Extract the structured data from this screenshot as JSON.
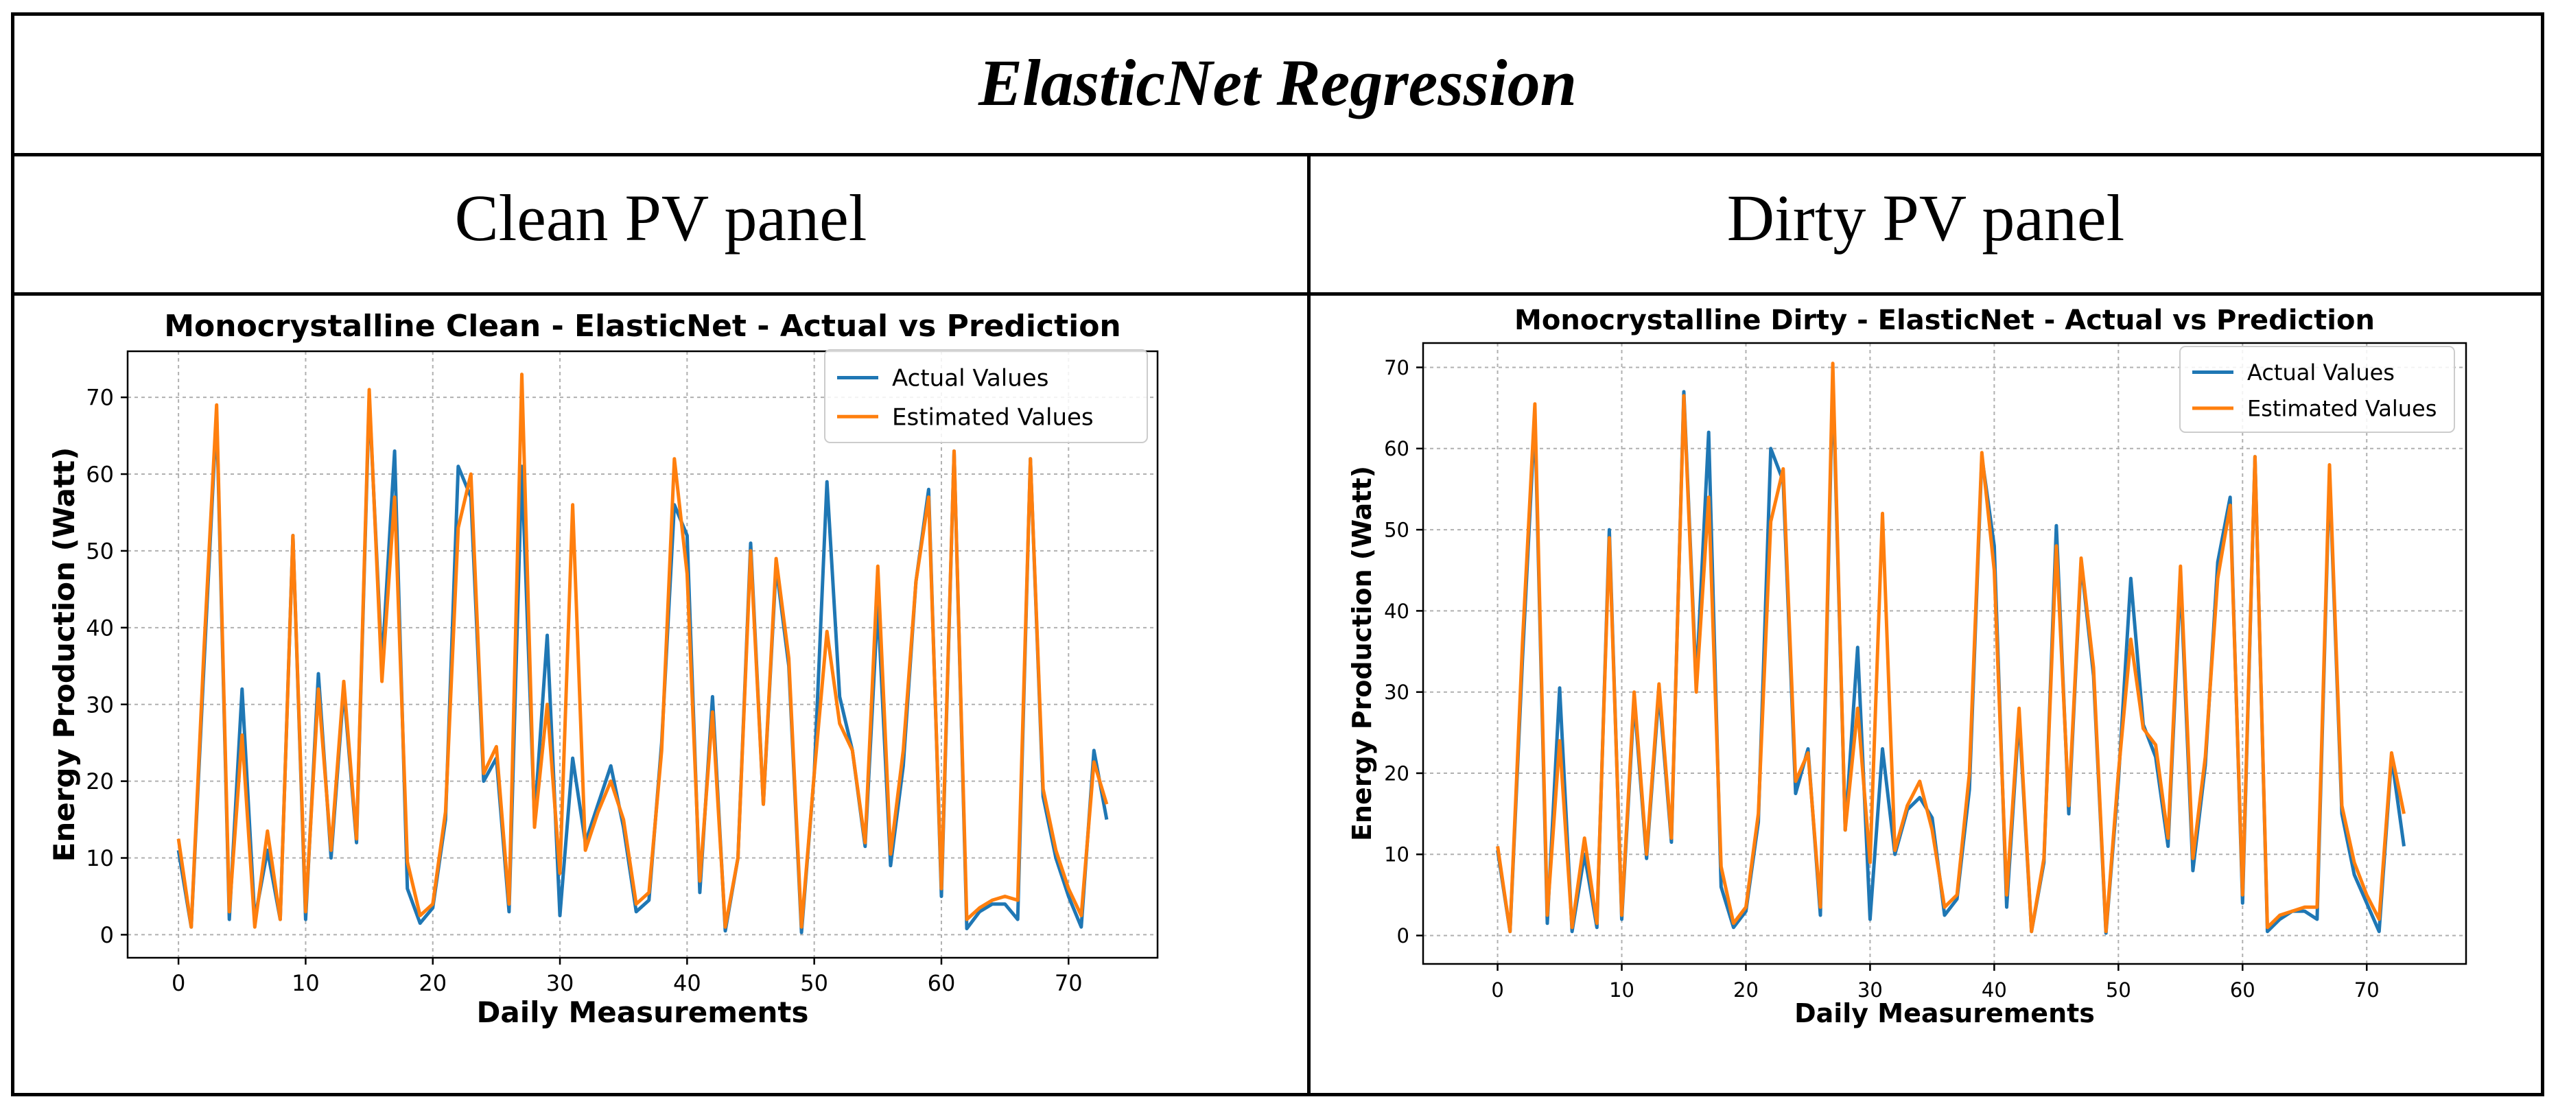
{
  "table": {
    "title": "ElasticNet Regression",
    "left_heading": "Clean PV panel",
    "right_heading": "Dirty PV panel"
  },
  "colors": {
    "actual": "#1f77b4",
    "estimated": "#ff7f0e"
  },
  "chart_data": [
    {
      "type": "line",
      "title": "Monocrystalline Clean  - ElasticNet - Actual vs Prediction",
      "xlabel": "Daily Measurements",
      "ylabel": "Energy Production (Watt)",
      "xlim": [
        -4,
        77
      ],
      "ylim": [
        -3,
        76
      ],
      "xticks": [
        0,
        10,
        20,
        30,
        40,
        50,
        60,
        70
      ],
      "yticks": [
        0,
        10,
        20,
        30,
        40,
        50,
        60,
        70
      ],
      "grid": true,
      "legend_position": "top-right",
      "x": [
        0,
        1,
        2,
        3,
        4,
        5,
        6,
        7,
        8,
        9,
        10,
        11,
        12,
        13,
        14,
        15,
        16,
        17,
        18,
        19,
        20,
        21,
        22,
        23,
        24,
        25,
        26,
        27,
        28,
        29,
        30,
        31,
        32,
        33,
        34,
        35,
        36,
        37,
        38,
        39,
        40,
        41,
        42,
        43,
        44,
        45,
        46,
        47,
        48,
        49,
        50,
        51,
        52,
        53,
        54,
        55,
        56,
        57,
        58,
        59,
        60,
        61,
        62,
        63,
        64,
        65,
        66,
        67,
        68,
        69,
        70,
        71,
        72,
        73
      ],
      "series": [
        {
          "name": "Actual Values",
          "values": [
            11,
            1,
            35,
            68,
            2,
            32,
            2,
            11,
            2,
            52,
            2,
            34,
            10,
            32,
            12,
            70,
            35,
            63,
            6,
            1.5,
            3.5,
            15,
            61,
            57,
            20,
            23,
            3,
            61,
            15,
            39,
            2.5,
            23,
            12,
            17,
            22,
            14,
            3,
            4.5,
            25,
            56,
            52,
            5.5,
            31,
            0.5,
            10,
            51,
            17,
            48,
            35,
            0.3,
            21,
            59,
            31,
            24,
            11.5,
            43,
            9,
            22,
            46,
            58,
            5,
            63,
            0.8,
            3,
            4,
            4,
            2,
            62,
            18,
            10,
            5,
            1,
            24,
            15
          ]
        },
        {
          "name": "Estimated Values",
          "values": [
            12.5,
            1,
            37,
            69,
            3,
            26,
            1,
            13.5,
            2,
            52,
            3,
            32,
            11,
            33,
            12.5,
            71,
            33,
            57,
            9.5,
            2.5,
            4,
            16,
            53,
            60,
            21,
            24.5,
            4,
            73,
            14,
            30,
            8,
            56,
            11,
            16,
            20,
            15,
            4,
            5.5,
            24,
            62,
            47,
            7,
            29,
            1,
            10,
            50,
            17,
            49,
            36,
            1,
            21,
            39.5,
            27.5,
            24,
            12,
            48,
            10.5,
            24,
            46,
            57,
            6,
            63,
            2,
            3.5,
            4.5,
            5,
            4.5,
            62,
            19,
            11,
            6,
            2.5,
            22.5,
            17
          ]
        }
      ]
    },
    {
      "type": "line",
      "title": "Monocrystalline Dirty - ElasticNet - Actual vs Prediction",
      "xlabel": "Daily Measurements",
      "ylabel": "Energy Production (Watt)",
      "xlim": [
        -6,
        78
      ],
      "ylim": [
        -3.5,
        73
      ],
      "xticks": [
        0,
        10,
        20,
        30,
        40,
        50,
        60,
        70
      ],
      "yticks": [
        0,
        10,
        20,
        30,
        40,
        50,
        60,
        70
      ],
      "grid": true,
      "legend_position": "top-right",
      "x": [
        0,
        1,
        2,
        3,
        4,
        5,
        6,
        7,
        8,
        9,
        10,
        11,
        12,
        13,
        14,
        15,
        16,
        17,
        18,
        19,
        20,
        21,
        22,
        23,
        24,
        25,
        26,
        27,
        28,
        29,
        30,
        31,
        32,
        33,
        34,
        35,
        36,
        37,
        38,
        39,
        40,
        41,
        42,
        43,
        44,
        45,
        46,
        47,
        48,
        49,
        50,
        51,
        52,
        53,
        54,
        55,
        56,
        57,
        58,
        59,
        60,
        61,
        62,
        63,
        64,
        65,
        66,
        67,
        68,
        69,
        70,
        71,
        72,
        73
      ],
      "series": [
        {
          "name": "Actual Values",
          "values": [
            10.5,
            0.5,
            34,
            64,
            1.5,
            30.5,
            0.5,
            10,
            1,
            50,
            2,
            29,
            9.5,
            30,
            11.5,
            67,
            31,
            62,
            6,
            1,
            3,
            14,
            60,
            56,
            17.5,
            23,
            2.5,
            69,
            13,
            35.5,
            2,
            23,
            10,
            15.5,
            17,
            14.5,
            2.5,
            4.5,
            18,
            59,
            48,
            3.5,
            27,
            0.5,
            9,
            50.5,
            15,
            46,
            32,
            0.3,
            19,
            44,
            26,
            22,
            11,
            44,
            8,
            21,
            46,
            54,
            4,
            59,
            0.5,
            2,
            3,
            3,
            2,
            57,
            15,
            7.5,
            4,
            0.5,
            22,
            11
          ]
        },
        {
          "name": "Estimated Values",
          "values": [
            11,
            0.5,
            36,
            65.5,
            2.5,
            24,
            1,
            12,
            1.5,
            49,
            2.5,
            30,
            10,
            31,
            12,
            66.5,
            30,
            54,
            8.5,
            1.5,
            3.5,
            15,
            51,
            57.5,
            19,
            22.5,
            3.5,
            70.5,
            13,
            28,
            9,
            52,
            10.5,
            16,
            19,
            13,
            3.5,
            5,
            20,
            59.5,
            45,
            5,
            28,
            0.5,
            9.5,
            48,
            16,
            46.5,
            33,
            0.5,
            20,
            36.5,
            25.5,
            23.5,
            12,
            45.5,
            9.5,
            22,
            44,
            53,
            5,
            59,
            1,
            2.5,
            3,
            3.5,
            3.5,
            58,
            16,
            9,
            5,
            2,
            22.5,
            15
          ]
        }
      ]
    }
  ]
}
